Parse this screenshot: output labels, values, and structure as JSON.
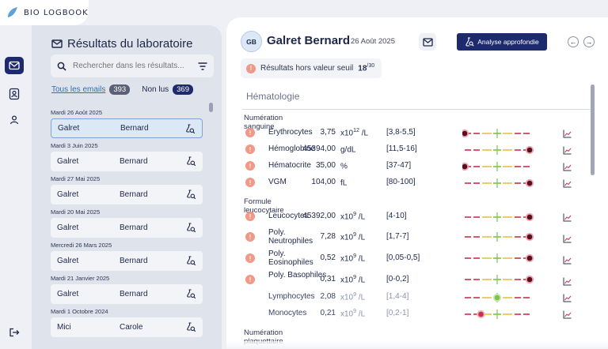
{
  "app": {
    "logo_text": "BIO LOGBOOK"
  },
  "nav": {
    "items": [
      "mail-icon",
      "contacts-icon",
      "user-icon"
    ],
    "logout": "logout-icon"
  },
  "left": {
    "title": "Résultats du laboratoire",
    "search_placeholder": "Rechercher dans les résultats...",
    "filter_all": "Tous les emails",
    "count_all": "393",
    "filter_unread": "Non lus",
    "count_unread": "369",
    "messages": [
      {
        "date": "Mardi 26 Août 2025",
        "last": "Galret",
        "first": "Bernard",
        "selected": true
      },
      {
        "date": "Mardi 3 Juin 2025",
        "last": "Galret",
        "first": "Bernard"
      },
      {
        "date": "Mardi 27 Mai 2025",
        "last": "Galret",
        "first": "Bernard"
      },
      {
        "date": "Mardi 20 Mai 2025",
        "last": "Galret",
        "first": "Bernard"
      },
      {
        "date": "Mercredi 26 Mars 2025",
        "last": "Galret",
        "first": "Bernard"
      },
      {
        "date": "Mardi 21 Janvier 2025",
        "last": "Galret",
        "first": "Bernard"
      },
      {
        "date": "Mardi 1 Octobre 2024",
        "last": "Mici",
        "first": "Carole"
      }
    ]
  },
  "header": {
    "initials": "GB",
    "patient": "Galret Bernard",
    "date": "26 Août 2025",
    "analyze_label": "Analyse approfondie",
    "prev": "←",
    "next": "→"
  },
  "threshold": {
    "label": "Résultats hors valeur seuil",
    "count": "18",
    "total": "30"
  },
  "section": {
    "title": "Hématologie"
  },
  "groups": [
    {
      "title": "Numération sanguine",
      "rows": [
        {
          "name": "Érythrocytes",
          "value": "3,75",
          "unit_base": "x10",
          "unit_exp": "12",
          "unit_suffix": " /L",
          "range": "[3,8-5,5]",
          "flag": true,
          "level": 0.0
        },
        {
          "name": "Hémoglobine",
          "value": "45394,00",
          "unit_base": "g/dL",
          "unit_exp": "",
          "unit_suffix": "",
          "range": "[11,5-16]",
          "flag": true,
          "level": 1.0
        },
        {
          "name": "Hématocrite",
          "value": "35,00",
          "unit_base": "%",
          "unit_exp": "",
          "unit_suffix": "",
          "range": "[37-47]",
          "flag": true,
          "level": 0.0
        },
        {
          "name": "VGM",
          "value": "104,00",
          "unit_base": "fL",
          "unit_exp": "",
          "unit_suffix": "",
          "range": "[80-100]",
          "flag": true,
          "level": 1.0
        }
      ]
    },
    {
      "title": "Formule leucocytaire",
      "rows": [
        {
          "name": "Leucocytes",
          "value": "45392,00",
          "unit_base": "x10",
          "unit_exp": "9",
          "unit_suffix": " /L",
          "range": "[4-10]",
          "flag": true,
          "level": 1.0
        },
        {
          "name": "Poly. Neutrophiles",
          "value": "7,28",
          "unit_base": "x10",
          "unit_exp": "9",
          "unit_suffix": " /L",
          "range": "[1,7-7]",
          "flag": true,
          "level": 1.0
        },
        {
          "name": "Poly. Eosinophiles",
          "value": "0,52",
          "unit_base": "x10",
          "unit_exp": "9",
          "unit_suffix": " /L",
          "range": "[0,05-0,5]",
          "flag": true,
          "level": 1.0
        },
        {
          "name": "Poly. Basophiles",
          "value": "0,31",
          "unit_base": "x10",
          "unit_exp": "9",
          "unit_suffix": " /L",
          "range": "[0-0,2]",
          "flag": true,
          "level": 1.0
        },
        {
          "name": "Lymphocytes",
          "value": "2,08",
          "unit_base": "x10",
          "unit_exp": "9",
          "unit_suffix": " /L",
          "range": "[1,4-4]",
          "flag": false,
          "level": 0.5
        },
        {
          "name": "Monocytes",
          "value": "0,21",
          "unit_base": "x10",
          "unit_exp": "9",
          "unit_suffix": " /L",
          "range": "[0,2-1]",
          "flag": false,
          "level": 0.25
        }
      ]
    },
    {
      "title": "Numération plaquettaire",
      "rows": []
    }
  ],
  "colors": {
    "accent": "#1e2a6e",
    "warn": "#f19886",
    "normal": "#7cc34e",
    "high": "#c8304b",
    "mid": "#e3c24a",
    "marker": "#5a0f1c"
  }
}
